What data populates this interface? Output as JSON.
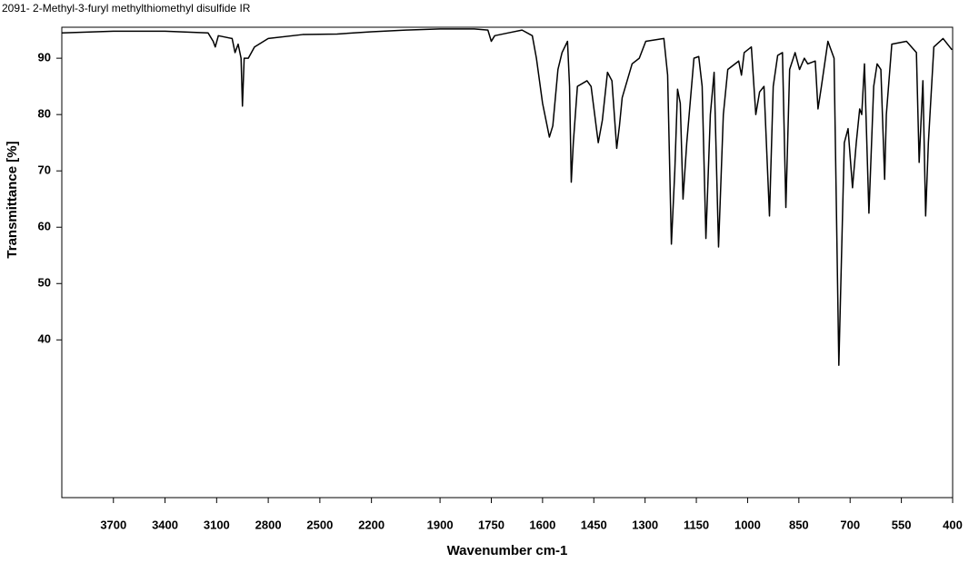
{
  "chart_data": {
    "type": "line",
    "title": "2091- 2-Methyl-3-furyl methylthiomethyl disulfide IR",
    "xlabel": "Wavenumber cm-1",
    "ylabel": "Transmittance [%]",
    "xlim": [
      4000,
      400
    ],
    "x_break": 2000,
    "ylim": [
      12,
      95.5
    ],
    "xticks": [
      3700,
      3400,
      3100,
      2800,
      2500,
      2200,
      1900,
      1750,
      1600,
      1450,
      1300,
      1150,
      1000,
      850,
      700,
      550,
      400
    ],
    "yticks": [
      40,
      50,
      60,
      70,
      80,
      90
    ],
    "grid": false,
    "color": "#000000",
    "x": [
      4000,
      3700,
      3400,
      3150,
      3120,
      3108,
      3090,
      3010,
      2993,
      2975,
      2958,
      2950,
      2940,
      2916,
      2880,
      2800,
      2600,
      2400,
      2200,
      2000,
      1900,
      1800,
      1760,
      1750,
      1740,
      1700,
      1660,
      1630,
      1618,
      1600,
      1580,
      1570,
      1555,
      1543,
      1527,
      1521,
      1516,
      1510,
      1498,
      1470,
      1458,
      1437,
      1425,
      1410,
      1397,
      1383,
      1375,
      1367,
      1338,
      1317,
      1298,
      1245,
      1234,
      1223,
      1213,
      1205,
      1197,
      1189,
      1178,
      1157,
      1143,
      1133,
      1122,
      1109,
      1098,
      1085,
      1071,
      1058,
      1026,
      1018,
      1010,
      989,
      976,
      965,
      952,
      936,
      925,
      912,
      898,
      888,
      877,
      861,
      848,
      834,
      824,
      802,
      794,
      784,
      765,
      747,
      733,
      717,
      706,
      693,
      682,
      672,
      666,
      658,
      645,
      631,
      621,
      610,
      599,
      594,
      578,
      535,
      506,
      498,
      487,
      479,
      471,
      455,
      428,
      402
    ],
    "values": [
      94.5,
      94.8,
      94.8,
      94.5,
      93,
      92,
      94,
      93.5,
      91,
      92.5,
      90,
      81.5,
      90,
      90,
      92,
      93.5,
      94.2,
      94.3,
      94.7,
      95,
      95.2,
      95.2,
      95,
      93,
      94,
      94.5,
      95,
      94,
      90,
      82,
      76,
      78,
      88,
      91,
      93,
      85,
      68,
      75,
      85,
      86,
      85,
      75,
      79,
      87.5,
      86,
      74,
      78,
      83,
      89,
      90,
      93,
      93.5,
      87,
      57,
      70,
      84.5,
      82,
      65,
      75,
      90,
      90.3,
      85,
      58,
      80,
      87.5,
      56.5,
      80,
      88,
      89.5,
      87,
      91,
      92,
      80,
      84,
      85,
      62,
      85,
      90.5,
      91,
      63.5,
      88,
      91,
      88,
      90,
      89,
      89.5,
      81,
      85,
      93,
      90,
      35.5,
      75,
      77.5,
      67,
      75,
      81,
      80,
      89,
      62.5,
      85,
      89,
      88,
      68.5,
      80,
      92.5,
      93,
      91,
      71.5,
      86,
      62,
      75,
      92,
      93.5,
      91.5
    ]
  }
}
